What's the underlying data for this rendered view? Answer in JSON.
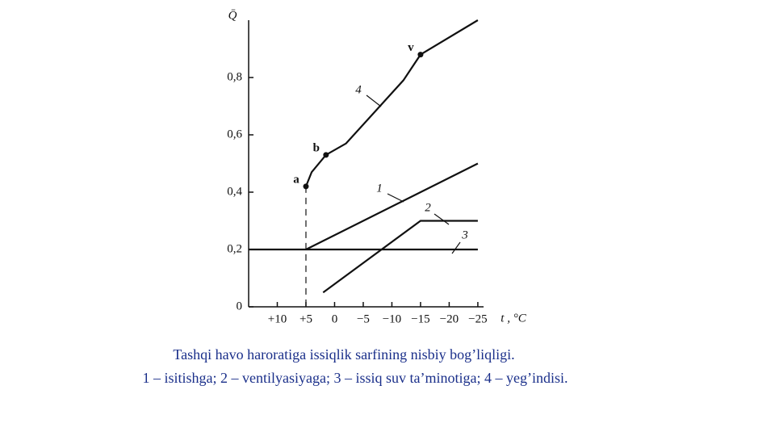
{
  "chart_data": {
    "type": "line",
    "y_label": "Q̄",
    "x_label": "t , °C",
    "xlim": [
      15,
      -26
    ],
    "ylim": [
      0,
      1
    ],
    "xticks": [
      {
        "value": 10,
        "label": "+10"
      },
      {
        "value": 5,
        "label": "+5"
      },
      0,
      {
        "value": -5,
        "label": "−5"
      },
      {
        "value": -10,
        "label": "−10"
      },
      {
        "value": -15,
        "label": "−15"
      },
      {
        "value": -20,
        "label": "−20"
      },
      {
        "value": -25,
        "label": "−25"
      }
    ],
    "yticks": [
      0,
      {
        "value": 0.2,
        "label": "0,2"
      },
      {
        "value": 0.4,
        "label": "0,4"
      },
      {
        "value": 0.6,
        "label": "0,6"
      },
      {
        "value": 0.8,
        "label": "0,8"
      }
    ],
    "color": "#111111",
    "series": [
      {
        "name": "1",
        "x": [
          5,
          -25
        ],
        "values": [
          0.2,
          0.5
        ]
      },
      {
        "name": "2",
        "x": [
          2,
          -15,
          -25
        ],
        "values": [
          0.05,
          0.3,
          0.3
        ]
      },
      {
        "name": "3",
        "x": [
          15,
          -25
        ],
        "values": [
          0.2,
          0.2
        ]
      },
      {
        "name": "4",
        "x": [
          5,
          4,
          1.5,
          -2,
          -7,
          -12,
          -15,
          -25
        ],
        "values": [
          0.42,
          0.47,
          0.53,
          0.57,
          0.68,
          0.79,
          0.88,
          1.0
        ],
        "point_labels": [
          "a",
          null,
          "b",
          null,
          null,
          null,
          "v",
          null
        ]
      }
    ],
    "caption": [
      "Tashqi havo haroratiga issiqlik sarfining nisbiy bog’liqligi.",
      "1 – isitishga; 2 – ventilyasiyaga; 3 – issiq suv ta’minotiga; 4 – yeg’indisi."
    ],
    "caption_color": "#1a2f8a"
  }
}
